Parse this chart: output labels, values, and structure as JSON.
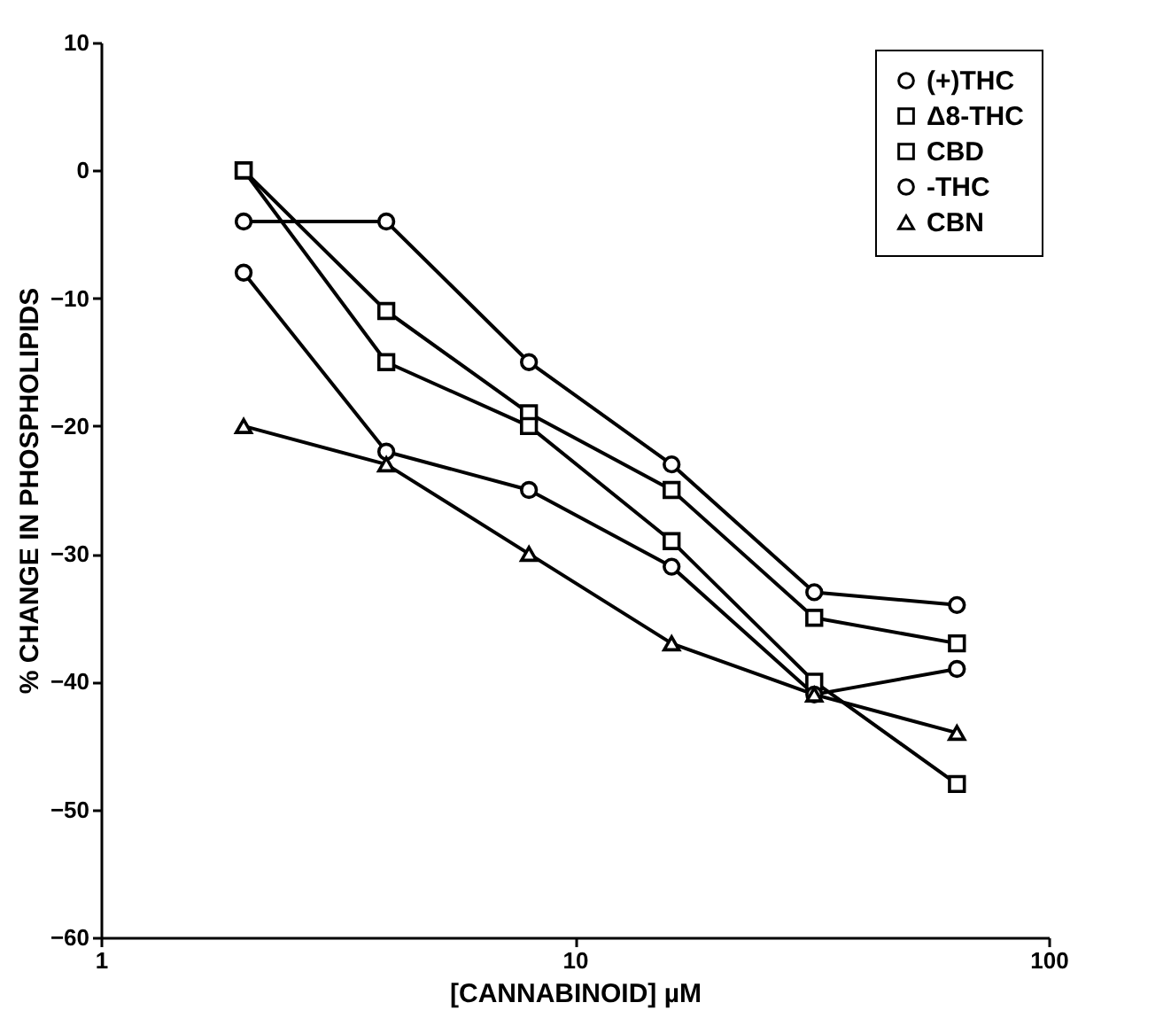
{
  "chart_data": {
    "type": "line",
    "xlabel": "[CANNABINOID] µM",
    "ylabel": "% CHANGE IN PHOSPHOLIPIDS",
    "x": [
      2,
      4,
      8,
      16,
      32,
      64
    ],
    "series": [
      {
        "name": "(+)THC",
        "color": "#000000",
        "marker": "circle",
        "values": [
          -4,
          -4,
          -15,
          -23,
          -33,
          -34
        ]
      },
      {
        "name": "Δ8-THC",
        "color": "#000000",
        "marker": "square",
        "values": [
          0,
          -11,
          -19,
          -25,
          -35,
          -37
        ]
      },
      {
        "name": "CBD",
        "color": "#000000",
        "marker": "square",
        "values": [
          0,
          -15,
          -20,
          -29,
          -40,
          -48
        ]
      },
      {
        "name": "-THC",
        "color": "#000000",
        "marker": "circle",
        "values": [
          -8,
          -22,
          -25,
          -31,
          -41,
          -39
        ]
      },
      {
        "name": "CBN",
        "color": "#000000",
        "marker": "triangle",
        "values": [
          -20,
          -23,
          -30,
          -37,
          -41,
          -44
        ]
      }
    ],
    "log": "x",
    "xlim": [
      1,
      100
    ],
    "xticks": [
      1,
      10,
      100
    ],
    "ylim": [
      -60,
      10
    ],
    "yticks": [
      -60,
      -50,
      -40,
      -30,
      -20,
      -10,
      0,
      10
    ],
    "grid": false,
    "legend": "top right",
    "line_style": "solid"
  }
}
